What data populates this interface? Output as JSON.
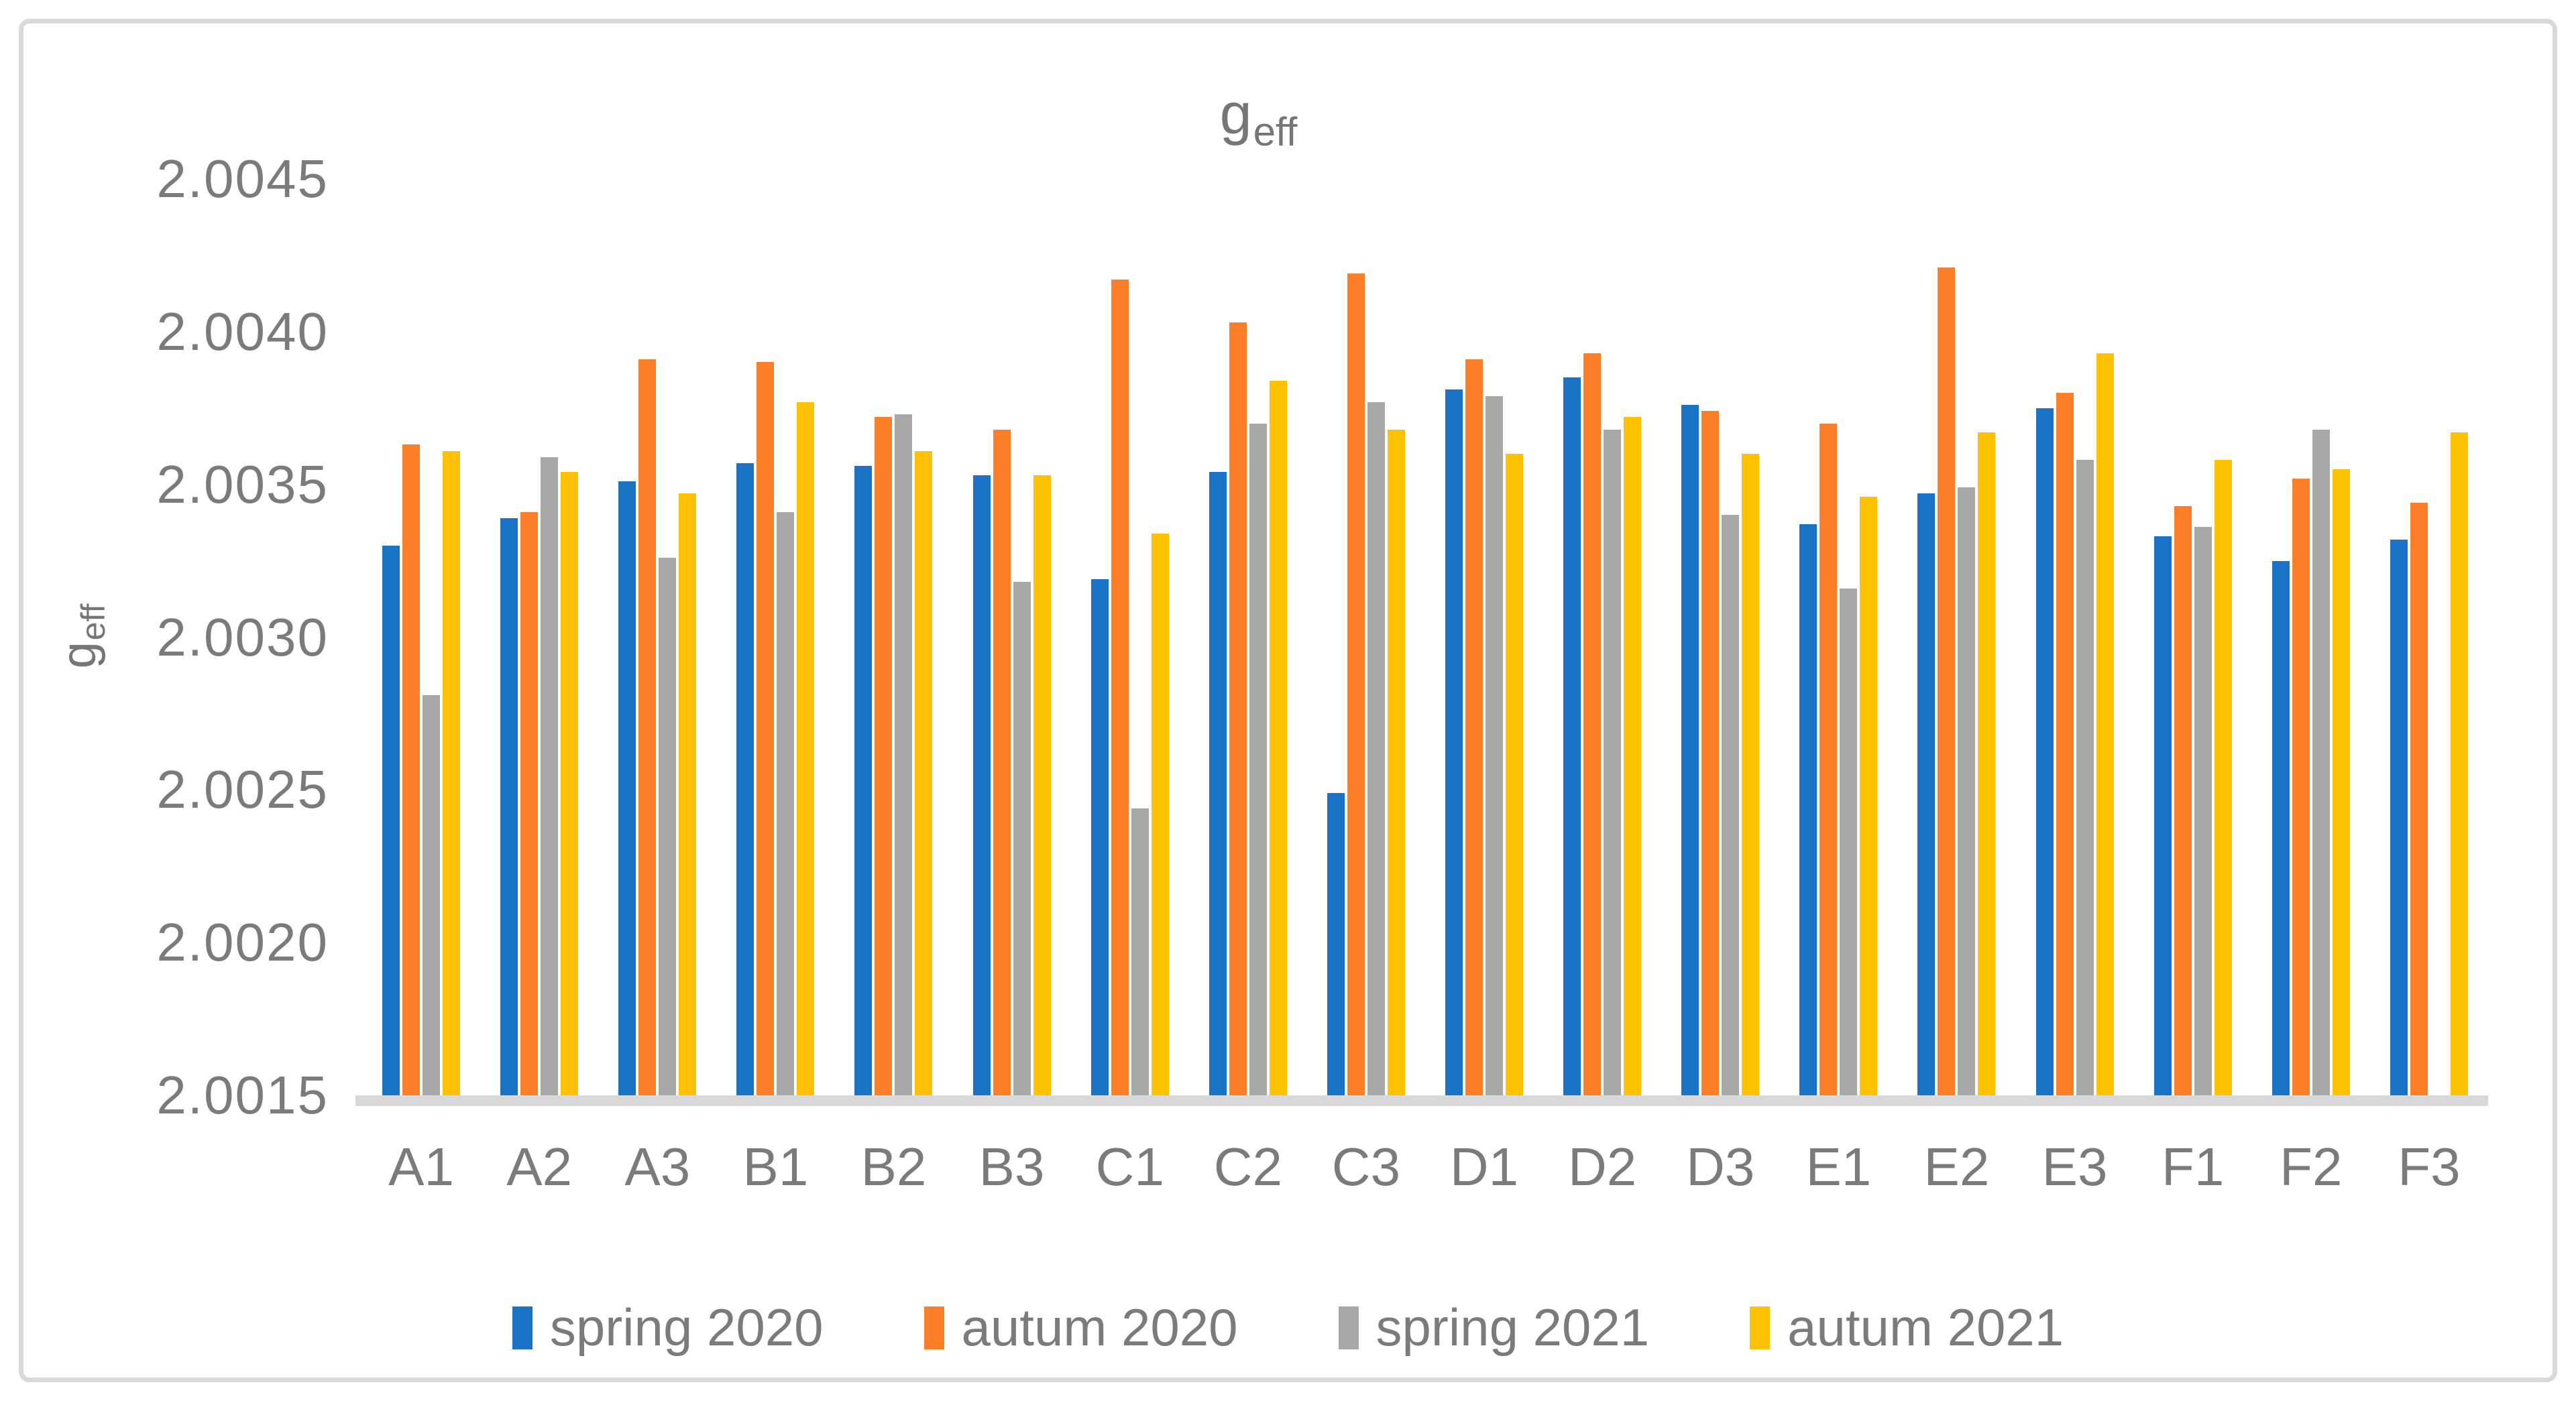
{
  "title": {
    "base": "g",
    "sub": "eff"
  },
  "y_axis": {
    "title_base": "g",
    "title_sub": "eff",
    "tick_labels": [
      "2.0015",
      "2.0020",
      "2.0025",
      "2.0030",
      "2.0035",
      "2.0040",
      "2.0045"
    ]
  },
  "colors": {
    "frame_border": "#d9d9d9",
    "axis_line": "#d9d9d9",
    "text_gray": "#7b7b7b"
  },
  "chart_data": {
    "type": "bar",
    "title": "g_eff",
    "xlabel": "",
    "ylabel": "g_eff",
    "ylim": [
      2.0015,
      2.0045
    ],
    "ytick_step": 0.0005,
    "grid": false,
    "legend_position": "bottom",
    "categories": [
      "A1",
      "A2",
      "A3",
      "B1",
      "B2",
      "B3",
      "C1",
      "C2",
      "C3",
      "D1",
      "D2",
      "D3",
      "E1",
      "E2",
      "E3",
      "F1",
      "F2",
      "F3"
    ],
    "series": [
      {
        "name": "spring 2020",
        "color": "#1b73c8",
        "values": [
          2.0033,
          2.00339,
          2.00351,
          2.00357,
          2.00356,
          2.00353,
          2.00319,
          2.00354,
          2.00249,
          2.00381,
          2.00385,
          2.00376,
          2.00337,
          2.00347,
          2.00375,
          2.00333,
          2.00325,
          2.00332
        ]
      },
      {
        "name": "autum 2020",
        "color": "#fd7e28",
        "values": [
          2.00363,
          2.00341,
          2.00391,
          2.0039,
          2.00372,
          2.00368,
          2.00417,
          2.00403,
          2.00419,
          2.00391,
          2.00393,
          2.00374,
          2.0037,
          2.00421,
          2.0038,
          2.00343,
          2.00352,
          2.00344
        ]
      },
      {
        "name": "spring 2021",
        "color": "#a8a8a8",
        "values": [
          2.00281,
          2.00359,
          2.00326,
          2.00341,
          2.00373,
          2.00318,
          2.00244,
          2.0037,
          2.00377,
          2.00379,
          2.00368,
          2.0034,
          2.00316,
          2.00349,
          2.00358,
          2.00336,
          2.00368,
          null
        ]
      },
      {
        "name": "autum 2021",
        "color": "#ffc103",
        "values": [
          2.00361,
          2.00354,
          2.00347,
          2.00377,
          2.00361,
          2.00353,
          2.00334,
          2.00384,
          2.00368,
          2.0036,
          2.00372,
          2.0036,
          2.00346,
          2.00367,
          2.00393,
          2.00358,
          2.00355,
          2.00367
        ]
      }
    ]
  }
}
